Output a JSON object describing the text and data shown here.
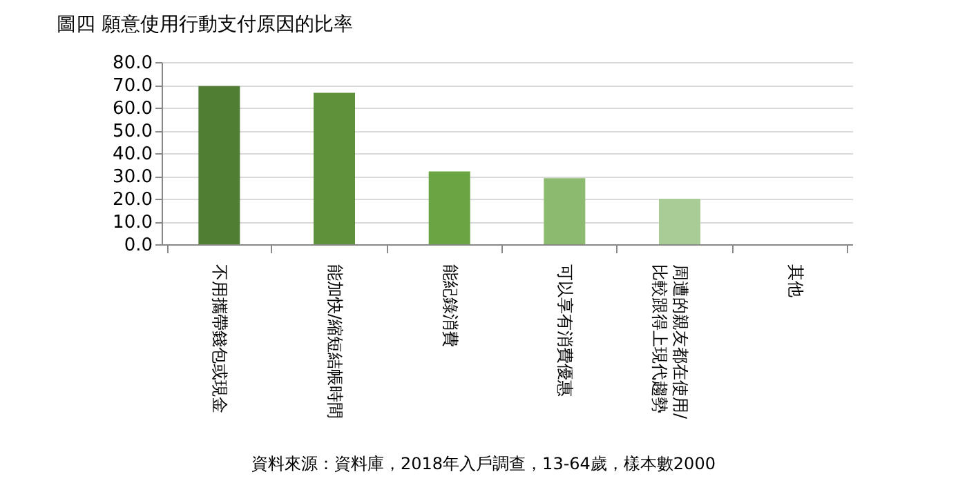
{
  "chart_data": {
    "type": "bar",
    "title": "圖四 願意使用行動支付原因的比率",
    "categories": [
      "不用攜帶錢包或現金",
      "能加快/縮短結帳時間",
      "能紀錄消費",
      "可以享有消費優惠",
      "周遭的親友都在使用/比較跟得上現代趨勢",
      "其他"
    ],
    "values": [
      69.5,
      66.5,
      32.0,
      29.0,
      20.0,
      0
    ],
    "colors": [
      "#507e32",
      "#5e913a",
      "#6aa443",
      "#8cba6f",
      "#a9cb95",
      "#c5dcb6"
    ],
    "ylim": [
      0,
      80
    ],
    "yticks": [
      {
        "value": 0,
        "label": "0.0"
      },
      {
        "value": 10,
        "label": "10.0"
      },
      {
        "value": 20,
        "label": "20.0"
      },
      {
        "value": 30,
        "label": "30.0"
      },
      {
        "value": 40,
        "label": "40.0"
      },
      {
        "value": 50,
        "label": "50.0"
      },
      {
        "value": 60,
        "label": "60.0"
      },
      {
        "value": 70,
        "label": "70.0"
      },
      {
        "value": 80,
        "label": "80.0"
      }
    ],
    "grid": "y",
    "annotations": [
      "資料來源：資料庫，2018年入戶調查，13-64歲，樣本數2000"
    ]
  }
}
